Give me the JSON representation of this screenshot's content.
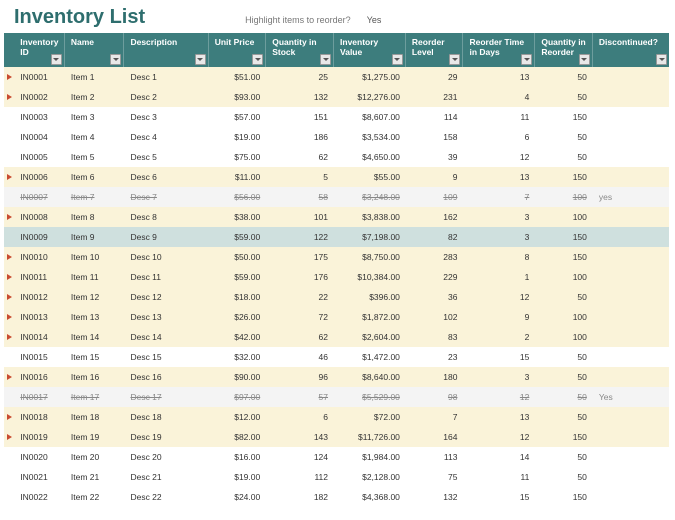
{
  "title": "Inventory List",
  "highlight": {
    "label": "Highlight items to reorder?",
    "value": "Yes"
  },
  "columns": [
    {
      "key": "id",
      "label": "Inventory ID",
      "cls": "c-id",
      "align": "left"
    },
    {
      "key": "name",
      "label": "Name",
      "cls": "c-name",
      "align": "left"
    },
    {
      "key": "desc",
      "label": "Description",
      "cls": "c-desc",
      "align": "left"
    },
    {
      "key": "unitPrice",
      "label": "Unit Price",
      "cls": "c-up",
      "align": "right"
    },
    {
      "key": "qtyStock",
      "label": "Quantity in Stock",
      "cls": "c-qs",
      "align": "right"
    },
    {
      "key": "invValue",
      "label": "Inventory Value",
      "cls": "c-iv",
      "align": "right"
    },
    {
      "key": "reorderLevel",
      "label": "Reorder Level",
      "cls": "c-rl",
      "align": "right"
    },
    {
      "key": "reorderDays",
      "label": "Reorder Time in Days",
      "cls": "c-rt",
      "align": "right"
    },
    {
      "key": "qtyReorder",
      "label": "Quantity in Reorder",
      "cls": "c-qr",
      "align": "right"
    },
    {
      "key": "discontinued",
      "label": "Discontinued?",
      "cls": "c-dc",
      "align": "left"
    }
  ],
  "style": {
    "header_bg": "#3d7d7d",
    "header_fg": "#ffffff",
    "row_plain": "#ffffff",
    "row_highlight": "#faf3d9",
    "row_blue": "#cfe0de",
    "row_disc": "#f4f4f4",
    "flag_color": "#c94a2f",
    "title_color": "#2e6e6e"
  },
  "rows": [
    {
      "flag": true,
      "rowStyle": "hi",
      "id": "IN0001",
      "name": "Item 1",
      "desc": "Desc 1",
      "unitPrice": "$51.00",
      "qtyStock": "25",
      "invValue": "$1,275.00",
      "reorderLevel": "29",
      "reorderDays": "13",
      "qtyReorder": "50",
      "discontinued": ""
    },
    {
      "flag": true,
      "rowStyle": "hi",
      "id": "IN0002",
      "name": "Item 2",
      "desc": "Desc 2",
      "unitPrice": "$93.00",
      "qtyStock": "132",
      "invValue": "$12,276.00",
      "reorderLevel": "231",
      "reorderDays": "4",
      "qtyReorder": "50",
      "discontinued": ""
    },
    {
      "flag": false,
      "rowStyle": "plain",
      "id": "IN0003",
      "name": "Item 3",
      "desc": "Desc 3",
      "unitPrice": "$57.00",
      "qtyStock": "151",
      "invValue": "$8,607.00",
      "reorderLevel": "114",
      "reorderDays": "11",
      "qtyReorder": "150",
      "discontinued": ""
    },
    {
      "flag": false,
      "rowStyle": "plain",
      "id": "IN0004",
      "name": "Item 4",
      "desc": "Desc 4",
      "unitPrice": "$19.00",
      "qtyStock": "186",
      "invValue": "$3,534.00",
      "reorderLevel": "158",
      "reorderDays": "6",
      "qtyReorder": "50",
      "discontinued": ""
    },
    {
      "flag": false,
      "rowStyle": "plain",
      "id": "IN0005",
      "name": "Item 5",
      "desc": "Desc 5",
      "unitPrice": "$75.00",
      "qtyStock": "62",
      "invValue": "$4,650.00",
      "reorderLevel": "39",
      "reorderDays": "12",
      "qtyReorder": "50",
      "discontinued": ""
    },
    {
      "flag": true,
      "rowStyle": "hi",
      "id": "IN0006",
      "name": "Item 6",
      "desc": "Desc 6",
      "unitPrice": "$11.00",
      "qtyStock": "5",
      "invValue": "$55.00",
      "reorderLevel": "9",
      "reorderDays": "13",
      "qtyReorder": "150",
      "discontinued": ""
    },
    {
      "flag": false,
      "rowStyle": "disc",
      "id": "IN0007",
      "name": "Item 7",
      "desc": "Desc 7",
      "unitPrice": "$56.00",
      "qtyStock": "58",
      "invValue": "$3,248.00",
      "reorderLevel": "109",
      "reorderDays": "7",
      "qtyReorder": "100",
      "discontinued": "yes"
    },
    {
      "flag": true,
      "rowStyle": "hi",
      "id": "IN0008",
      "name": "Item 8",
      "desc": "Desc 8",
      "unitPrice": "$38.00",
      "qtyStock": "101",
      "invValue": "$3,838.00",
      "reorderLevel": "162",
      "reorderDays": "3",
      "qtyReorder": "100",
      "discontinued": ""
    },
    {
      "flag": false,
      "rowStyle": "blue",
      "id": "IN0009",
      "name": "Item 9",
      "desc": "Desc 9",
      "unitPrice": "$59.00",
      "qtyStock": "122",
      "invValue": "$7,198.00",
      "reorderLevel": "82",
      "reorderDays": "3",
      "qtyReorder": "150",
      "discontinued": ""
    },
    {
      "flag": true,
      "rowStyle": "hi",
      "id": "IN0010",
      "name": "Item 10",
      "desc": "Desc 10",
      "unitPrice": "$50.00",
      "qtyStock": "175",
      "invValue": "$8,750.00",
      "reorderLevel": "283",
      "reorderDays": "8",
      "qtyReorder": "150",
      "discontinued": ""
    },
    {
      "flag": true,
      "rowStyle": "hi",
      "id": "IN0011",
      "name": "Item 11",
      "desc": "Desc 11",
      "unitPrice": "$59.00",
      "qtyStock": "176",
      "invValue": "$10,384.00",
      "reorderLevel": "229",
      "reorderDays": "1",
      "qtyReorder": "100",
      "discontinued": ""
    },
    {
      "flag": true,
      "rowStyle": "hi",
      "id": "IN0012",
      "name": "Item 12",
      "desc": "Desc 12",
      "unitPrice": "$18.00",
      "qtyStock": "22",
      "invValue": "$396.00",
      "reorderLevel": "36",
      "reorderDays": "12",
      "qtyReorder": "50",
      "discontinued": ""
    },
    {
      "flag": true,
      "rowStyle": "hi",
      "id": "IN0013",
      "name": "Item 13",
      "desc": "Desc 13",
      "unitPrice": "$26.00",
      "qtyStock": "72",
      "invValue": "$1,872.00",
      "reorderLevel": "102",
      "reorderDays": "9",
      "qtyReorder": "100",
      "discontinued": ""
    },
    {
      "flag": true,
      "rowStyle": "hi",
      "id": "IN0014",
      "name": "Item 14",
      "desc": "Desc 14",
      "unitPrice": "$42.00",
      "qtyStock": "62",
      "invValue": "$2,604.00",
      "reorderLevel": "83",
      "reorderDays": "2",
      "qtyReorder": "100",
      "discontinued": ""
    },
    {
      "flag": false,
      "rowStyle": "plain",
      "id": "IN0015",
      "name": "Item 15",
      "desc": "Desc 15",
      "unitPrice": "$32.00",
      "qtyStock": "46",
      "invValue": "$1,472.00",
      "reorderLevel": "23",
      "reorderDays": "15",
      "qtyReorder": "50",
      "discontinued": ""
    },
    {
      "flag": true,
      "rowStyle": "hi",
      "id": "IN0016",
      "name": "Item 16",
      "desc": "Desc 16",
      "unitPrice": "$90.00",
      "qtyStock": "96",
      "invValue": "$8,640.00",
      "reorderLevel": "180",
      "reorderDays": "3",
      "qtyReorder": "50",
      "discontinued": ""
    },
    {
      "flag": false,
      "rowStyle": "disc",
      "id": "IN0017",
      "name": "Item 17",
      "desc": "Desc 17",
      "unitPrice": "$97.00",
      "qtyStock": "57",
      "invValue": "$5,529.00",
      "reorderLevel": "98",
      "reorderDays": "12",
      "qtyReorder": "50",
      "discontinued": "Yes"
    },
    {
      "flag": true,
      "rowStyle": "hi",
      "id": "IN0018",
      "name": "Item 18",
      "desc": "Desc 18",
      "unitPrice": "$12.00",
      "qtyStock": "6",
      "invValue": "$72.00",
      "reorderLevel": "7",
      "reorderDays": "13",
      "qtyReorder": "50",
      "discontinued": ""
    },
    {
      "flag": true,
      "rowStyle": "hi",
      "id": "IN0019",
      "name": "Item 19",
      "desc": "Desc 19",
      "unitPrice": "$82.00",
      "qtyStock": "143",
      "invValue": "$11,726.00",
      "reorderLevel": "164",
      "reorderDays": "12",
      "qtyReorder": "150",
      "discontinued": ""
    },
    {
      "flag": false,
      "rowStyle": "plain",
      "id": "IN0020",
      "name": "Item 20",
      "desc": "Desc 20",
      "unitPrice": "$16.00",
      "qtyStock": "124",
      "invValue": "$1,984.00",
      "reorderLevel": "113",
      "reorderDays": "14",
      "qtyReorder": "50",
      "discontinued": ""
    },
    {
      "flag": false,
      "rowStyle": "plain",
      "id": "IN0021",
      "name": "Item 21",
      "desc": "Desc 21",
      "unitPrice": "$19.00",
      "qtyStock": "112",
      "invValue": "$2,128.00",
      "reorderLevel": "75",
      "reorderDays": "11",
      "qtyReorder": "50",
      "discontinued": ""
    },
    {
      "flag": false,
      "rowStyle": "plain",
      "id": "IN0022",
      "name": "Item 22",
      "desc": "Desc 22",
      "unitPrice": "$24.00",
      "qtyStock": "182",
      "invValue": "$4,368.00",
      "reorderLevel": "132",
      "reorderDays": "15",
      "qtyReorder": "150",
      "discontinued": ""
    }
  ]
}
